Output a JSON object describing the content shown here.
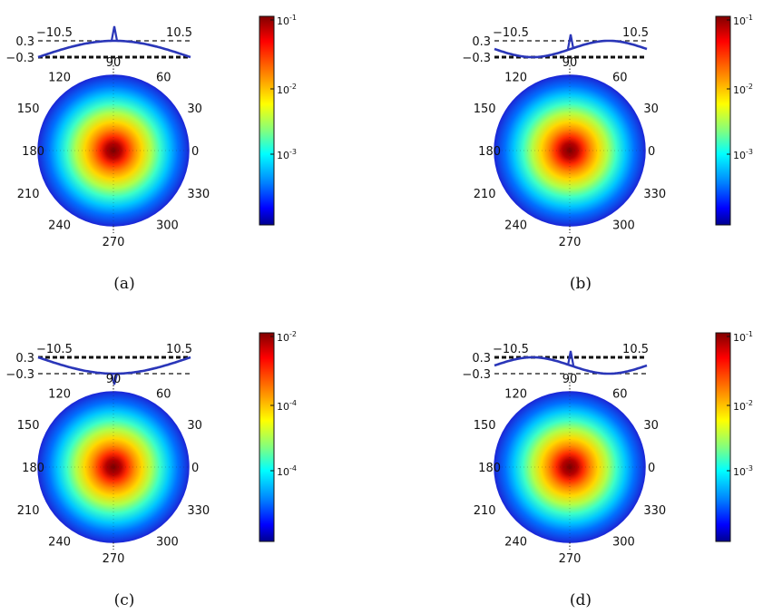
{
  "figure": {
    "panels": [
      {
        "caption": "(a)",
        "profile": {
          "y_top_label": "0.3",
          "y_bottom_label": "−0.3",
          "x_left_label": "−10.5",
          "x_right_label": "10.5",
          "shape": "hump",
          "spike": "up",
          "thick_line": "bottom"
        },
        "angle_labels": [
          "0",
          "30",
          "60",
          "90",
          "120",
          "150",
          "180",
          "210",
          "240",
          "270",
          "300",
          "330"
        ],
        "colorbar": {
          "ticks": [
            "10",
            "10",
            "10"
          ],
          "exps": [
            "-1",
            "-2",
            "-3"
          ],
          "small": false
        }
      },
      {
        "caption": "(b)",
        "profile": {
          "y_top_label": "0.3",
          "y_bottom_label": "−0.3",
          "x_left_label": "−10.5",
          "x_right_label": "10.5",
          "shape": "sine",
          "spike": "up",
          "thick_line": "bottom"
        },
        "angle_labels": [
          "0",
          "30",
          "60",
          "90",
          "120",
          "150",
          "180",
          "210",
          "240",
          "270",
          "300",
          "330"
        ],
        "colorbar": {
          "ticks": [
            "10",
            "10",
            "10"
          ],
          "exps": [
            "-1",
            "-2",
            "-3"
          ],
          "small": false
        }
      },
      {
        "caption": "(c)",
        "profile": {
          "y_top_label": "0.3",
          "y_bottom_label": "−0.3",
          "x_left_label": "−10.5",
          "x_right_label": "10.5",
          "shape": "valley",
          "spike": "down",
          "thick_line": "top"
        },
        "angle_labels": [
          "0",
          "30",
          "60",
          "90",
          "120",
          "150",
          "180",
          "210",
          "240",
          "270",
          "300",
          "330"
        ],
        "colorbar": {
          "ticks": [
            "10",
            "10",
            "10"
          ],
          "exps": [
            "-2",
            "-4",
            "-4"
          ],
          "small": true
        }
      },
      {
        "caption": "(d)",
        "profile": {
          "y_top_label": "0.3",
          "y_bottom_label": "−0.3",
          "x_left_label": "−10.5",
          "x_right_label": "10.5",
          "shape": "sine-inverted",
          "spike": "up",
          "thick_line": "top"
        },
        "angle_labels": [
          "0",
          "30",
          "60",
          "90",
          "120",
          "150",
          "180",
          "210",
          "240",
          "270",
          "300",
          "330"
        ],
        "colorbar": {
          "ticks": [
            "10",
            "10",
            "10"
          ],
          "exps": [
            "-1",
            "-2",
            "-3"
          ],
          "small": false
        }
      }
    ]
  },
  "chart_data": [
    {
      "type": "heatmap",
      "projection": "polar",
      "angle_ticks_deg": [
        0,
        30,
        60,
        90,
        120,
        150,
        180,
        210,
        240,
        270,
        300,
        330
      ],
      "color_scale": "log",
      "colormap": "jet",
      "colorbar_ticks": [
        "10^-1",
        "10^-2",
        "10^-3"
      ],
      "profile_x_range": [
        -10.5,
        10.5
      ],
      "profile_y_levels": [
        0.3,
        -0.3
      ],
      "pattern": "radially symmetric peak at center"
    },
    {
      "type": "heatmap",
      "projection": "polar",
      "angle_ticks_deg": [
        0,
        30,
        60,
        90,
        120,
        150,
        180,
        210,
        240,
        270,
        300,
        330
      ],
      "color_scale": "log",
      "colormap": "jet",
      "colorbar_ticks": [
        "10^-1",
        "10^-2",
        "10^-3"
      ],
      "profile_x_range": [
        -10.5,
        10.5
      ],
      "profile_y_levels": [
        0.3,
        -0.3
      ],
      "pattern": "radially symmetric peak at center"
    },
    {
      "type": "heatmap",
      "projection": "polar",
      "angle_ticks_deg": [
        0,
        30,
        60,
        90,
        120,
        150,
        180,
        210,
        240,
        270,
        300,
        330
      ],
      "color_scale": "log",
      "colormap": "jet",
      "colorbar_ticks": [
        "10^-2",
        "10^-4",
        "10^-4"
      ],
      "profile_x_range": [
        -10.5,
        10.5
      ],
      "profile_y_levels": [
        0.3,
        -0.3
      ],
      "pattern": "radially symmetric peak at center"
    },
    {
      "type": "heatmap",
      "projection": "polar",
      "angle_ticks_deg": [
        0,
        30,
        60,
        90,
        120,
        150,
        180,
        210,
        240,
        270,
        300,
        330
      ],
      "color_scale": "log",
      "colormap": "jet",
      "colorbar_ticks": [
        "10^-1",
        "10^-2",
        "10^-3"
      ],
      "profile_x_range": [
        -10.5,
        10.5
      ],
      "profile_y_levels": [
        0.3,
        -0.3
      ],
      "pattern": "radially symmetric peak at center"
    }
  ],
  "colors": {
    "profile_line": "#2a36b8",
    "grid": "#222222"
  }
}
